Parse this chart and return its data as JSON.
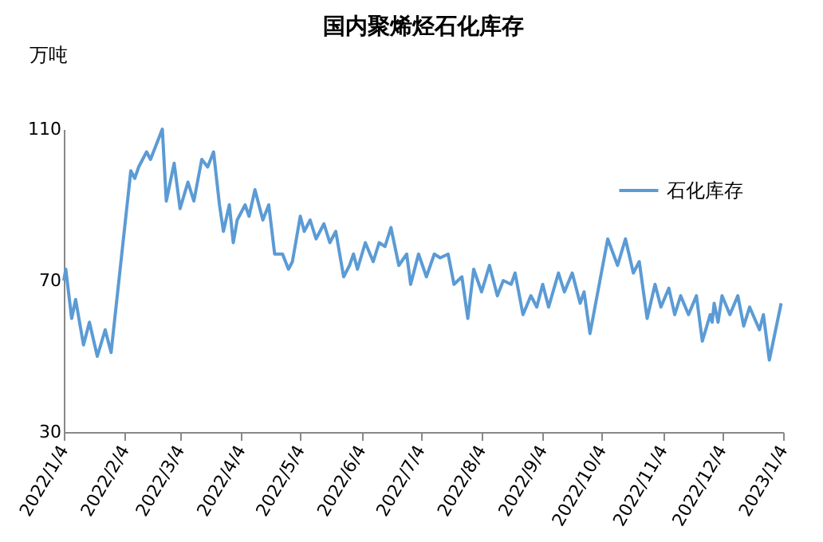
{
  "chart_data": {
    "type": "line",
    "title": "国内聚烯烃石化库存",
    "ylabel": "万吨",
    "x": [
      "2022-01-04",
      "2022-01-05",
      "2022-01-08",
      "2022-01-10",
      "2022-01-14",
      "2022-01-17",
      "2022-01-21",
      "2022-01-25",
      "2022-01-28",
      "2022-02-07",
      "2022-02-09",
      "2022-02-11",
      "2022-02-15",
      "2022-02-17",
      "2022-02-23",
      "2022-02-25",
      "2022-03-01",
      "2022-03-04",
      "2022-03-08",
      "2022-03-11",
      "2022-03-15",
      "2022-03-18",
      "2022-03-21",
      "2022-03-24",
      "2022-03-26",
      "2022-03-29",
      "2022-03-31",
      "2022-04-02",
      "2022-04-06",
      "2022-04-08",
      "2022-04-11",
      "2022-04-15",
      "2022-04-18",
      "2022-04-21",
      "2022-04-25",
      "2022-04-28",
      "2022-04-30",
      "2022-05-04",
      "2022-05-06",
      "2022-05-09",
      "2022-05-12",
      "2022-05-16",
      "2022-05-19",
      "2022-05-22",
      "2022-05-26",
      "2022-05-29",
      "2022-05-31",
      "2022-06-02",
      "2022-06-06",
      "2022-06-10",
      "2022-06-13",
      "2022-06-16",
      "2022-06-19",
      "2022-06-23",
      "2022-06-27",
      "2022-06-29",
      "2022-07-03",
      "2022-07-07",
      "2022-07-11",
      "2022-07-14",
      "2022-07-18",
      "2022-07-21",
      "2022-07-25",
      "2022-07-28",
      "2022-07-31",
      "2022-08-04",
      "2022-08-08",
      "2022-08-12",
      "2022-08-15",
      "2022-08-19",
      "2022-08-21",
      "2022-08-25",
      "2022-08-29",
      "2022-09-01",
      "2022-09-04",
      "2022-09-07",
      "2022-09-12",
      "2022-09-15",
      "2022-09-19",
      "2022-09-23",
      "2022-09-25",
      "2022-09-28",
      "2022-10-07",
      "2022-10-12",
      "2022-10-16",
      "2022-10-20",
      "2022-10-23",
      "2022-10-27",
      "2022-10-31",
      "2022-11-03",
      "2022-11-07",
      "2022-11-10",
      "2022-11-13",
      "2022-11-17",
      "2022-11-21",
      "2022-11-24",
      "2022-11-28",
      "2022-11-29",
      "2022-11-30",
      "2022-12-02",
      "2022-12-04",
      "2022-12-08",
      "2022-12-12",
      "2022-12-15",
      "2022-12-18",
      "2022-12-23",
      "2022-12-25",
      "2022-12-28",
      "2023-01-03"
    ],
    "series": [
      {
        "name": "石化库存",
        "color": "#5b9bd5",
        "values": [
          70,
          73,
          60,
          65,
          53,
          59,
          50,
          57,
          51,
          99,
          97,
          100,
          104,
          102,
          110,
          91,
          101,
          89,
          96,
          91,
          102,
          100,
          104,
          90,
          83,
          90,
          80,
          86,
          90,
          87,
          94,
          86,
          90,
          77,
          77,
          73,
          75,
          87,
          83,
          86,
          81,
          85,
          80,
          83,
          71,
          74,
          77,
          73,
          80,
          75,
          80,
          79,
          84,
          74,
          77,
          69,
          77,
          71,
          77,
          76,
          77,
          69,
          71,
          60,
          73,
          67,
          74,
          66,
          70,
          69,
          72,
          61,
          66,
          63,
          69,
          63,
          72,
          67,
          72,
          64,
          67,
          56,
          81,
          74,
          81,
          72,
          75,
          60,
          69,
          63,
          68,
          61,
          66,
          61,
          66,
          54,
          61,
          59,
          64,
          59,
          66,
          61,
          66,
          58,
          63,
          57,
          61,
          49,
          64
        ]
      }
    ],
    "xlim": [
      "2022-01-04",
      "2023-01-04"
    ],
    "xticks": [
      {
        "value": "2022-01-04",
        "label": "2022/1/4"
      },
      {
        "value": "2022-02-04",
        "label": "2022/2/4"
      },
      {
        "value": "2022-03-04",
        "label": "2022/3/4"
      },
      {
        "value": "2022-04-04",
        "label": "2022/4/4"
      },
      {
        "value": "2022-05-04",
        "label": "2022/5/4"
      },
      {
        "value": "2022-06-04",
        "label": "2022/6/4"
      },
      {
        "value": "2022-07-04",
        "label": "2022/7/4"
      },
      {
        "value": "2022-08-04",
        "label": "2022/8/4"
      },
      {
        "value": "2022-09-04",
        "label": "2022/9/4"
      },
      {
        "value": "2022-10-04",
        "label": "2022/10/4"
      },
      {
        "value": "2022-11-04",
        "label": "2022/11/4"
      },
      {
        "value": "2022-12-04",
        "label": "2022/12/4"
      },
      {
        "value": "2023-01-04",
        "label": "2023/1/4"
      }
    ],
    "ylim": [
      30,
      110
    ],
    "yticks": [
      30,
      70,
      110
    ],
    "grid": false,
    "legend": "top right",
    "marker": "none",
    "line_style": "solid"
  }
}
